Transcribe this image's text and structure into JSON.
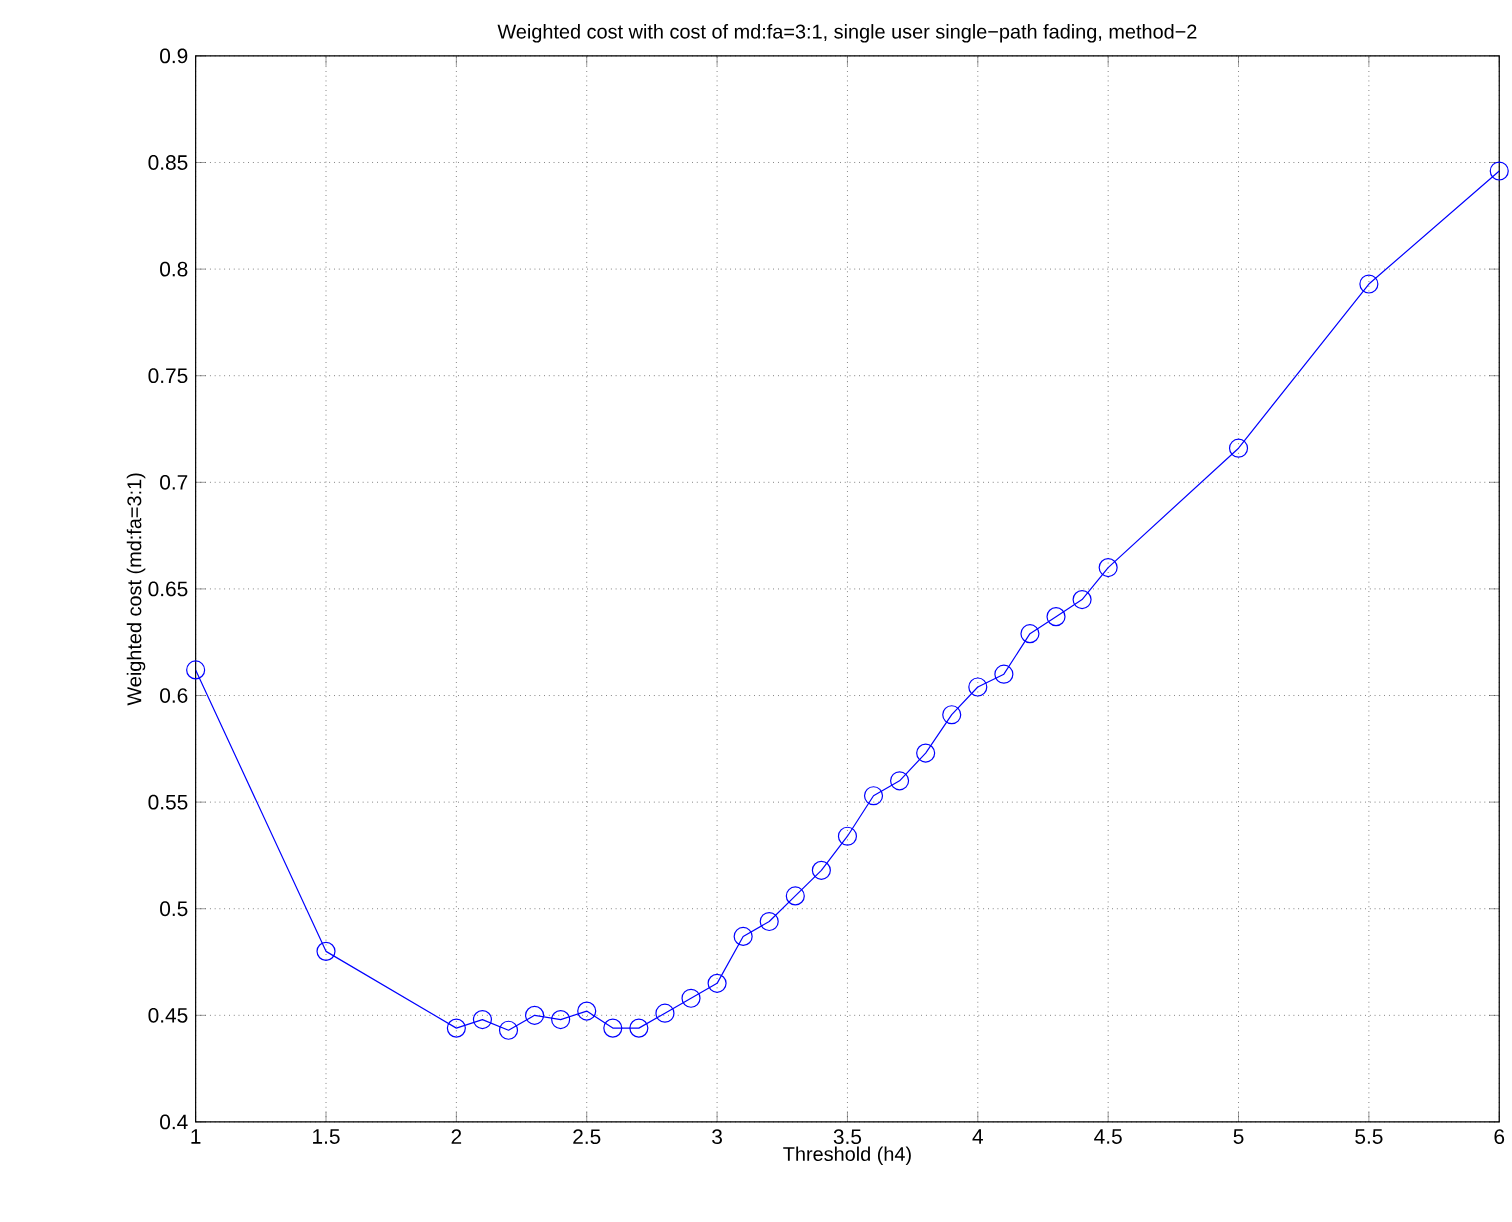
{
  "chart_data": {
    "type": "line",
    "title": "Weighted cost with cost of md:fa=3:1, single user single−path fading, method−2",
    "xlabel": "Threshold (h4)",
    "ylabel": "Weighted cost (md:fa=3:1)",
    "x": [
      1,
      1.5,
      2,
      2.1,
      2.2,
      2.3,
      2.4,
      2.5,
      2.6,
      2.7,
      2.8,
      2.9,
      3,
      3.1,
      3.2,
      3.3,
      3.4,
      3.5,
      3.6,
      3.7,
      3.8,
      3.9,
      4,
      4.1,
      4.2,
      4.3,
      4.4,
      4.5,
      5,
      5.5,
      6
    ],
    "series": [
      {
        "color": "#0000ff",
        "values": [
          0.612,
          0.48,
          0.444,
          0.448,
          0.443,
          0.45,
          0.448,
          0.452,
          0.444,
          0.444,
          0.451,
          0.458,
          0.465,
          0.487,
          0.494,
          0.506,
          0.518,
          0.534,
          0.553,
          0.56,
          0.573,
          0.591,
          0.604,
          0.61,
          0.629,
          0.637,
          0.645,
          0.66,
          0.716,
          0.793,
          0.846
        ]
      }
    ],
    "xlim": [
      1,
      6
    ],
    "ylim": [
      0.4,
      0.9
    ],
    "xticks": [
      1,
      1.5,
      2,
      2.5,
      3,
      3.5,
      4,
      4.5,
      5,
      5.5,
      6
    ],
    "yticks": [
      0.4,
      0.45,
      0.5,
      0.55,
      0.6,
      0.65,
      0.7,
      0.75,
      0.8,
      0.85,
      0.9
    ],
    "grid": true,
    "marker": "circle",
    "line_style": "solid"
  }
}
